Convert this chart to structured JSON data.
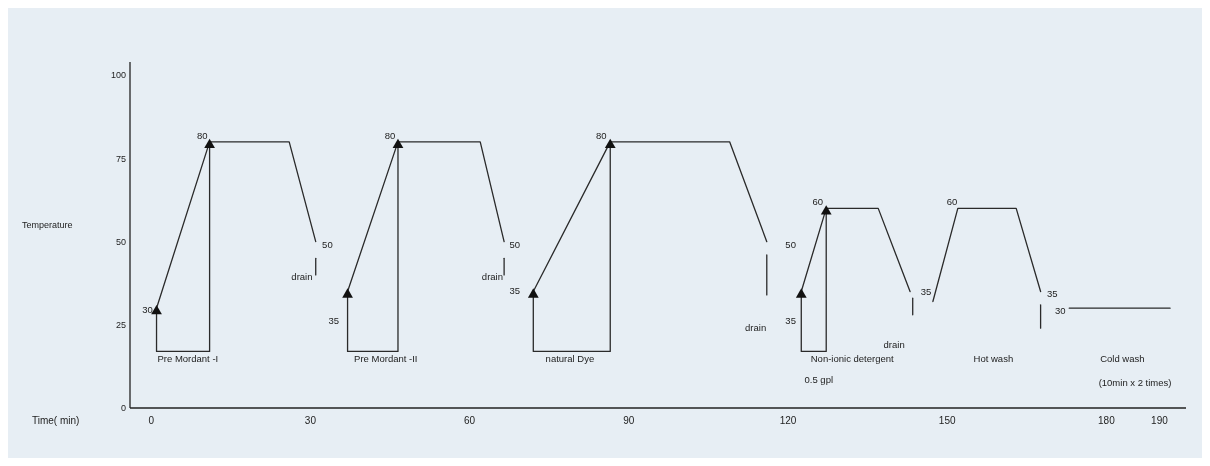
{
  "chart_data": {
    "type": "line",
    "xlabel": "Time( min)",
    "ylabel": "Temperature",
    "xlim": [
      -4,
      195
    ],
    "ylim": [
      0,
      104
    ],
    "xticks": [
      0,
      30,
      60,
      90,
      120,
      150,
      180,
      190
    ],
    "yticks": [
      0,
      25,
      50,
      75,
      100
    ],
    "grid": false,
    "series": [
      {
        "color": "#2a2a2a",
        "x": [
          11,
          11,
          1,
          1,
          11,
          26,
          31
        ],
        "values": [
          80,
          17,
          17,
          30,
          80,
          80,
          50
        ]
      },
      {
        "color": "#2a2a2a",
        "x": [
          31,
          31
        ],
        "values": [
          40,
          45
        ]
      },
      {
        "color": "#2a2a2a",
        "x": [
          46.5,
          46.5,
          37,
          37,
          46.5,
          62,
          66.5
        ],
        "values": [
          80,
          17,
          17,
          35,
          80,
          80,
          50
        ]
      },
      {
        "color": "#2a2a2a",
        "x": [
          66.5,
          66.5
        ],
        "values": [
          40,
          45
        ]
      },
      {
        "color": "#2a2a2a",
        "x": [
          86.5,
          86.5,
          72,
          72,
          86.5,
          109,
          116
        ],
        "values": [
          80,
          17,
          17,
          35,
          80,
          80,
          50
        ]
      },
      {
        "color": "#2a2a2a",
        "x": [
          116,
          116
        ],
        "values": [
          34,
          46
        ]
      },
      {
        "color": "#2a2a2a",
        "x": [
          127.2,
          127.2,
          122.5,
          122.5,
          127.2,
          137,
          143
        ],
        "values": [
          60,
          17,
          17,
          35,
          60,
          60,
          35
        ]
      },
      {
        "color": "#2a2a2a",
        "x": [
          143.5,
          143.5
        ],
        "values": [
          28,
          33
        ]
      },
      {
        "color": "#2a2a2a",
        "x": [
          147.3,
          152,
          163,
          167.6
        ],
        "values": [
          32,
          60,
          60,
          35
        ]
      },
      {
        "color": "#2a2a2a",
        "x": [
          167.6,
          167.6
        ],
        "values": [
          24,
          31
        ]
      },
      {
        "color": "#2a2a2a",
        "x": [
          173,
          192
        ],
        "values": [
          30,
          30
        ]
      },
      {
        "type": "scatter",
        "marker": "triangle",
        "color": "#111111",
        "x": [
          1,
          11,
          37,
          46.5,
          72,
          86.5,
          122.5,
          127.2
        ],
        "values": [
          30,
          80,
          35,
          80,
          35,
          80,
          35,
          60
        ]
      }
    ],
    "annotations": [
      "30",
      "80",
      "50",
      "drain",
      "Pre Mordant -I",
      "35",
      "80",
      "50",
      "drain",
      "Pre Mordant -II",
      "35",
      "80",
      "50",
      "drain",
      "natural Dye",
      "35",
      "60",
      "35",
      "drain",
      "Non-ionic detergent",
      "0.5 gpl",
      "60",
      "35",
      "30",
      "Hot wash",
      "Cold wash",
      "(10min x 2 times)"
    ]
  }
}
